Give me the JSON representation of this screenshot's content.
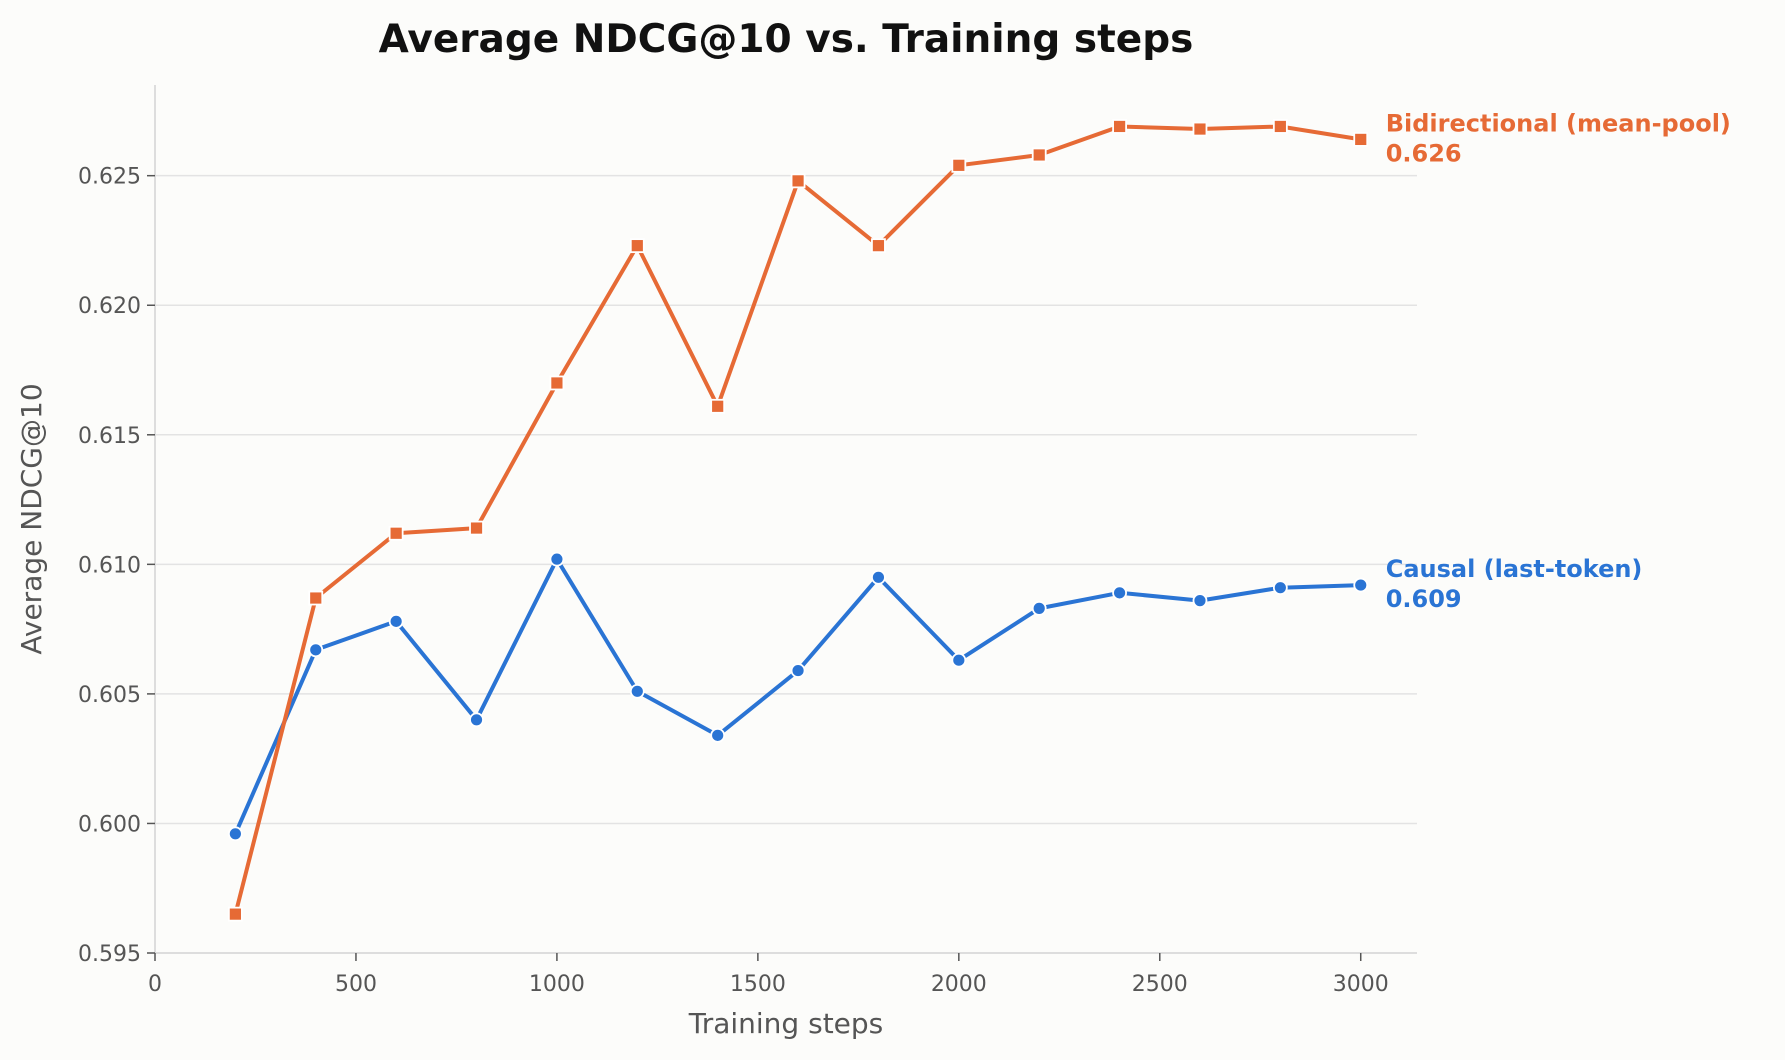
{
  "chart_data": {
    "type": "line",
    "title": "Average NDCG@10 vs. Training steps",
    "xlabel": "Training steps",
    "ylabel": "Average NDCG@10",
    "xlim": [
      0,
      3140
    ],
    "ylim": [
      0.595,
      0.6285
    ],
    "x_ticks": [
      0,
      500,
      1000,
      1500,
      2000,
      2500,
      3000
    ],
    "y_ticks": [
      0.595,
      0.6,
      0.605,
      0.61,
      0.615,
      0.62,
      0.625
    ],
    "y_tick_labels": [
      "0.595",
      "0.600",
      "0.605",
      "0.610",
      "0.615",
      "0.620",
      "0.625"
    ],
    "grid": "horizontal",
    "legend": "inline labels at line ends (right)",
    "x": [
      200,
      400,
      600,
      800,
      1000,
      1200,
      1400,
      1600,
      1800,
      2000,
      2200,
      2400,
      2600,
      2800,
      3000
    ],
    "series": [
      {
        "name": "Causal (last-token)",
        "end_label": "0.609",
        "color": "#2a74d4",
        "marker": "circle",
        "values": [
          0.5996,
          0.6067,
          0.6078,
          0.604,
          0.6102,
          0.6051,
          0.6034,
          0.6059,
          0.6095,
          0.6063,
          0.6083,
          0.6089,
          0.6086,
          0.6091,
          0.6092
        ]
      },
      {
        "name": "Bidirectional (mean-pool)",
        "end_label": "0.626",
        "color": "#e66a35",
        "marker": "square",
        "values": [
          0.5965,
          0.6087,
          0.6112,
          0.6114,
          0.617,
          0.6223,
          0.6161,
          0.6248,
          0.6223,
          0.6254,
          0.6258,
          0.6269,
          0.6268,
          0.6269,
          0.6264
        ]
      }
    ]
  }
}
